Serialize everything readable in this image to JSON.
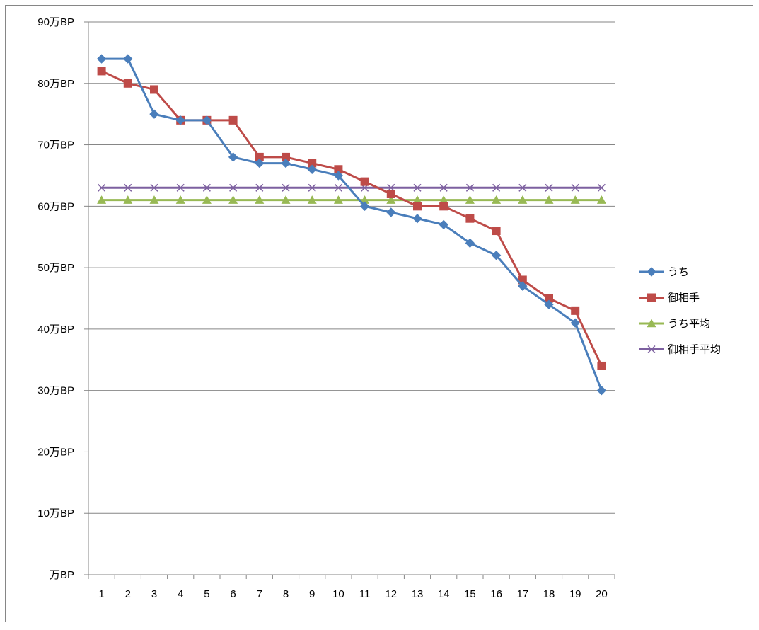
{
  "chart_data": {
    "type": "line",
    "title": "",
    "xlabel": "",
    "ylabel": "",
    "categories": [
      "1",
      "2",
      "3",
      "4",
      "5",
      "6",
      "7",
      "8",
      "9",
      "10",
      "11",
      "12",
      "13",
      "14",
      "15",
      "16",
      "17",
      "18",
      "19",
      "20"
    ],
    "ylim": [
      0,
      90
    ],
    "y_ticks": [
      0,
      10,
      20,
      30,
      40,
      50,
      60,
      70,
      80,
      90
    ],
    "y_tick_labels": [
      "万BP",
      "10万BP",
      "20万BP",
      "30万BP",
      "40万BP",
      "50万BP",
      "60万BP",
      "70万BP",
      "80万BP",
      "90万BP"
    ],
    "grid": true,
    "legend_position": "right",
    "series": [
      {
        "name": "うち",
        "color": "#4a7ebb",
        "marker": "diamond",
        "values": [
          84,
          84,
          75,
          74,
          74,
          68,
          67,
          67,
          66,
          65,
          60,
          59,
          58,
          57,
          54,
          52,
          47,
          44,
          41,
          30
        ]
      },
      {
        "name": "御相手",
        "color": "#be4b48",
        "marker": "square",
        "values": [
          82,
          80,
          79,
          74,
          74,
          74,
          68,
          68,
          67,
          66,
          64,
          62,
          60,
          60,
          58,
          56,
          48,
          45,
          43,
          34
        ]
      },
      {
        "name": "うち平均",
        "color": "#98b954",
        "marker": "triangle",
        "values": [
          61,
          61,
          61,
          61,
          61,
          61,
          61,
          61,
          61,
          61,
          61,
          61,
          61,
          61,
          61,
          61,
          61,
          61,
          61,
          61
        ]
      },
      {
        "name": "御相手平均",
        "color": "#7d60a0",
        "marker": "x",
        "values": [
          63,
          63,
          63,
          63,
          63,
          63,
          63,
          63,
          63,
          63,
          63,
          63,
          63,
          63,
          63,
          63,
          63,
          63,
          63,
          63
        ]
      }
    ]
  }
}
